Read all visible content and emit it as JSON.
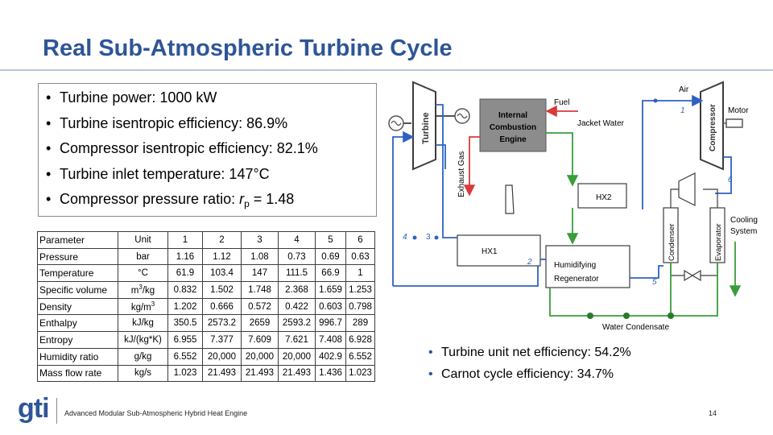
{
  "title": "Real Sub-Atmospheric Turbine Cycle",
  "bullets": [
    "Turbine power: 1000 kW",
    "Turbine isentropic efficiency: 86.9%",
    "Compressor isentropic efficiency: 82.1%",
    "Turbine inlet temperature: 147°C"
  ],
  "bullet_pressure": {
    "text": "Compressor pressure ratio: ",
    "var": "r",
    "sub": "p",
    "value": " = 1.48"
  },
  "table": {
    "headers": [
      "Parameter",
      "Unit",
      "1",
      "2",
      "3",
      "4",
      "5",
      "6"
    ],
    "rows": [
      [
        "Pressure",
        "bar",
        "1.16",
        "1.12",
        "1.08",
        "0.73",
        "0.69",
        "0.63"
      ],
      [
        "Temperature",
        "°C",
        "61.9",
        "103.4",
        "147",
        "111.5",
        "66.9",
        "1"
      ],
      [
        "Specific volume",
        "m3/kg",
        "0.832",
        "1.502",
        "1.748",
        "2.368",
        "1.659",
        "1.253"
      ],
      [
        "Density",
        "kg/m3",
        "1.202",
        "0.666",
        "0.572",
        "0.422",
        "0.603",
        "0.798"
      ],
      [
        "Enthalpy",
        "kJ/kg",
        "350.5",
        "2573.2",
        "2659",
        "2593.2",
        "996.7",
        "289"
      ],
      [
        "Entropy",
        "kJ/(kg*K)",
        "6.955",
        "7.377",
        "7.609",
        "7.621",
        "7.408",
        "6.928"
      ],
      [
        "Humidity ratio",
        "g/kg",
        "6.552",
        "20,000",
        "20,000",
        "20,000",
        "402.9",
        "6.552"
      ],
      [
        "Mass flow rate",
        "kg/s",
        "1.023",
        "21.493",
        "21.493",
        "21.493",
        "1.436",
        "1.023"
      ]
    ]
  },
  "diagram": {
    "turbine": "Turbine",
    "compressor": "Compressor",
    "ice": [
      "Internal",
      "Combustion",
      "Engine"
    ],
    "fuel": "Fuel",
    "jacket_water": "Jacket Water",
    "air": "Air",
    "motor": "Motor",
    "exhaust_gas": "Exhaust Gas",
    "hx2": "HX2",
    "hx1": "HX1",
    "regenerator": [
      "Humidifying",
      "Regenerator"
    ],
    "condenser": "Condenser",
    "evaporator": "Evaporator",
    "cooling": [
      "Cooling",
      "System"
    ],
    "water_condensate": "Water Condensate",
    "state_labels": [
      "1",
      "2",
      "3",
      "4",
      "5",
      "6"
    ],
    "colors": {
      "blue": "#2e62c0",
      "green": "#3a9d3a",
      "red": "#d83a3a",
      "dark": "#3c3c3c"
    }
  },
  "bullets2": [
    "Turbine unit net efficiency: 54.2%",
    "Carnot cycle efficiency: 34.7%"
  ],
  "footer": {
    "logo": "gti",
    "text": "Advanced Modular Sub-Atmospheric Hybrid Heat Engine",
    "page": "14"
  }
}
